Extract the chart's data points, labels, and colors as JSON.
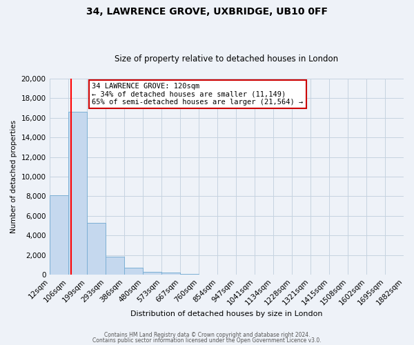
{
  "title": "34, LAWRENCE GROVE, UXBRIDGE, UB10 0FF",
  "subtitle": "Size of property relative to detached houses in London",
  "xlabel": "Distribution of detached houses by size in London",
  "ylabel": "Number of detached properties",
  "bar_values": [
    8100,
    16600,
    5300,
    1800,
    700,
    300,
    200,
    100,
    0,
    0,
    0,
    0,
    0,
    0,
    0,
    0,
    0,
    0,
    0
  ],
  "bar_left_edges": [
    12,
    106,
    199,
    293,
    386,
    480,
    573,
    667,
    760,
    854,
    947,
    1041,
    1134,
    1228,
    1321,
    1415,
    1508,
    1602,
    1695
  ],
  "bar_widths": [
    94,
    93,
    94,
    93,
    94,
    93,
    94,
    93,
    94,
    93,
    94,
    93,
    94,
    93,
    94,
    93,
    94,
    93,
    94
  ],
  "tick_labels": [
    "12sqm",
    "106sqm",
    "199sqm",
    "293sqm",
    "386sqm",
    "480sqm",
    "573sqm",
    "667sqm",
    "760sqm",
    "854sqm",
    "947sqm",
    "1041sqm",
    "1134sqm",
    "1228sqm",
    "1321sqm",
    "1415sqm",
    "1508sqm",
    "1602sqm",
    "1695sqm",
    "1882sqm"
  ],
  "bar_color": "#c5d8ee",
  "bar_edge_color": "#7bafd4",
  "red_line_x": 120,
  "annotation_title": "34 LAWRENCE GROVE: 120sqm",
  "annotation_line1": "← 34% of detached houses are smaller (11,149)",
  "annotation_line2": "65% of semi-detached houses are larger (21,564) →",
  "annotation_box_color": "#ffffff",
  "annotation_box_edge": "#cc0000",
  "ylim": [
    0,
    20000
  ],
  "yticks": [
    0,
    2000,
    4000,
    6000,
    8000,
    10000,
    12000,
    14000,
    16000,
    18000,
    20000
  ],
  "footer1": "Contains HM Land Registry data © Crown copyright and database right 2024.",
  "footer2": "Contains public sector information licensed under the Open Government Licence v3.0.",
  "bg_color": "#eef2f8",
  "grid_color": "#c5d3e0",
  "title_fontsize": 10,
  "subtitle_fontsize": 8.5,
  "ylabel_fontsize": 7.5,
  "xlabel_fontsize": 8,
  "ytick_fontsize": 7.5,
  "xtick_fontsize": 6.5,
  "footer_fontsize": 5.5,
  "ann_fontsize": 7.5
}
